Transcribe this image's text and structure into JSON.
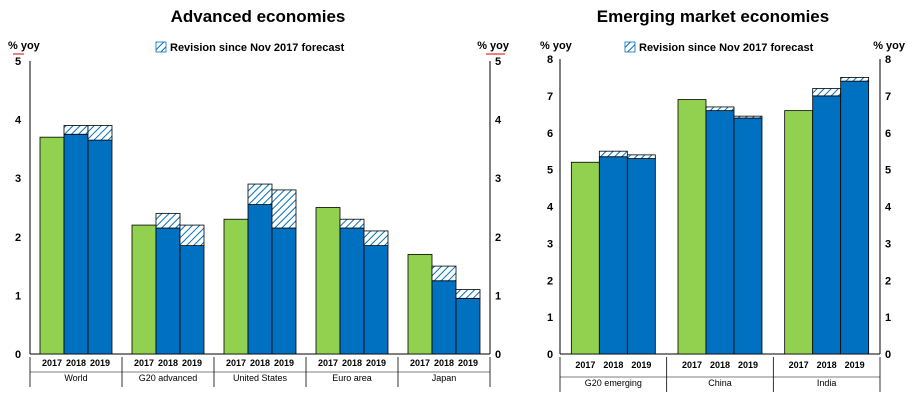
{
  "colors": {
    "green": "#92D050",
    "blue": "#0070C0",
    "revision_stroke": "#0070C0",
    "revision_bg": "#ffffff"
  },
  "chart_data": [
    {
      "type": "bar",
      "title": "Advanced economies",
      "ylabel_left": "% yoy",
      "ylabel_right": "% yoy",
      "ylim": [
        0,
        5
      ],
      "yticks": [
        0,
        1,
        2,
        3,
        4,
        5
      ],
      "legend": "Revision since Nov 2017 forecast",
      "legend_position": "top",
      "grid": false,
      "groups": [
        {
          "name": "World",
          "years": [
            "2017",
            "2018",
            "2019"
          ],
          "values": [
            3.7,
            3.75,
            3.65
          ],
          "revisions": [
            0,
            0.15,
            0.25
          ]
        },
        {
          "name": "G20 advanced",
          "years": [
            "2017",
            "2018",
            "2019"
          ],
          "values": [
            2.2,
            2.15,
            1.85
          ],
          "revisions": [
            0,
            0.25,
            0.35
          ]
        },
        {
          "name": "United States",
          "years": [
            "2017",
            "2018",
            "2019"
          ],
          "values": [
            2.3,
            2.55,
            2.15
          ],
          "revisions": [
            0,
            0.35,
            0.65
          ]
        },
        {
          "name": "Euro area",
          "years": [
            "2017",
            "2018",
            "2019"
          ],
          "values": [
            2.5,
            2.15,
            1.85
          ],
          "revisions": [
            0,
            0.15,
            0.25
          ]
        },
        {
          "name": "Japan",
          "years": [
            "2017",
            "2018",
            "2019"
          ],
          "values": [
            1.7,
            1.25,
            0.95
          ],
          "revisions": [
            0,
            0.25,
            0.15
          ]
        }
      ]
    },
    {
      "type": "bar",
      "title": "Emerging market economies",
      "ylabel_left": "% yoy",
      "ylabel_right": "% yoy",
      "ylim": [
        0,
        8
      ],
      "yticks": [
        0,
        1,
        2,
        3,
        4,
        5,
        6,
        7,
        8
      ],
      "legend": "Revision since Nov 2017 forecast",
      "legend_position": "top",
      "grid": false,
      "groups": [
        {
          "name": "G20 emerging",
          "years": [
            "2017",
            "2018",
            "2019"
          ],
          "values": [
            5.2,
            5.35,
            5.3
          ],
          "revisions": [
            0,
            0.15,
            0.1
          ]
        },
        {
          "name": "China",
          "years": [
            "2017",
            "2018",
            "2019"
          ],
          "values": [
            6.9,
            6.6,
            6.4
          ],
          "revisions": [
            0,
            0.1,
            0.05
          ]
        },
        {
          "name": "India",
          "years": [
            "2017",
            "2018",
            "2019"
          ],
          "values": [
            6.6,
            7.0,
            7.4
          ],
          "revisions": [
            0,
            0.2,
            0.1
          ]
        }
      ]
    }
  ]
}
